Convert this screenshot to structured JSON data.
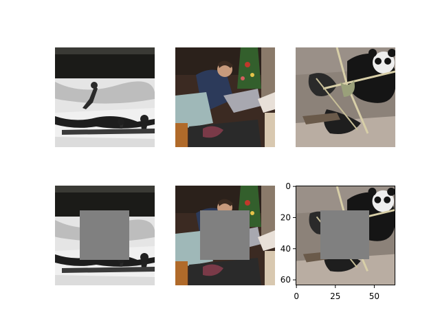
{
  "figure": {
    "panels": [
      {
        "name": "heron-original",
        "masked": false
      },
      {
        "name": "man-original",
        "masked": false
      },
      {
        "name": "panda-original",
        "masked": false
      },
      {
        "name": "heron-masked",
        "masked": true
      },
      {
        "name": "man-masked",
        "masked": true
      },
      {
        "name": "panda-masked",
        "masked": true
      }
    ],
    "mask_color": "#808080"
  },
  "axes": {
    "x_ticks": [
      "0",
      "25",
      "50"
    ],
    "y_ticks": [
      "0",
      "20",
      "40",
      "60"
    ],
    "x_tick_values": [
      0,
      25,
      50
    ],
    "y_tick_values": [
      0,
      20,
      40,
      60
    ],
    "range": [
      0,
      63
    ]
  }
}
